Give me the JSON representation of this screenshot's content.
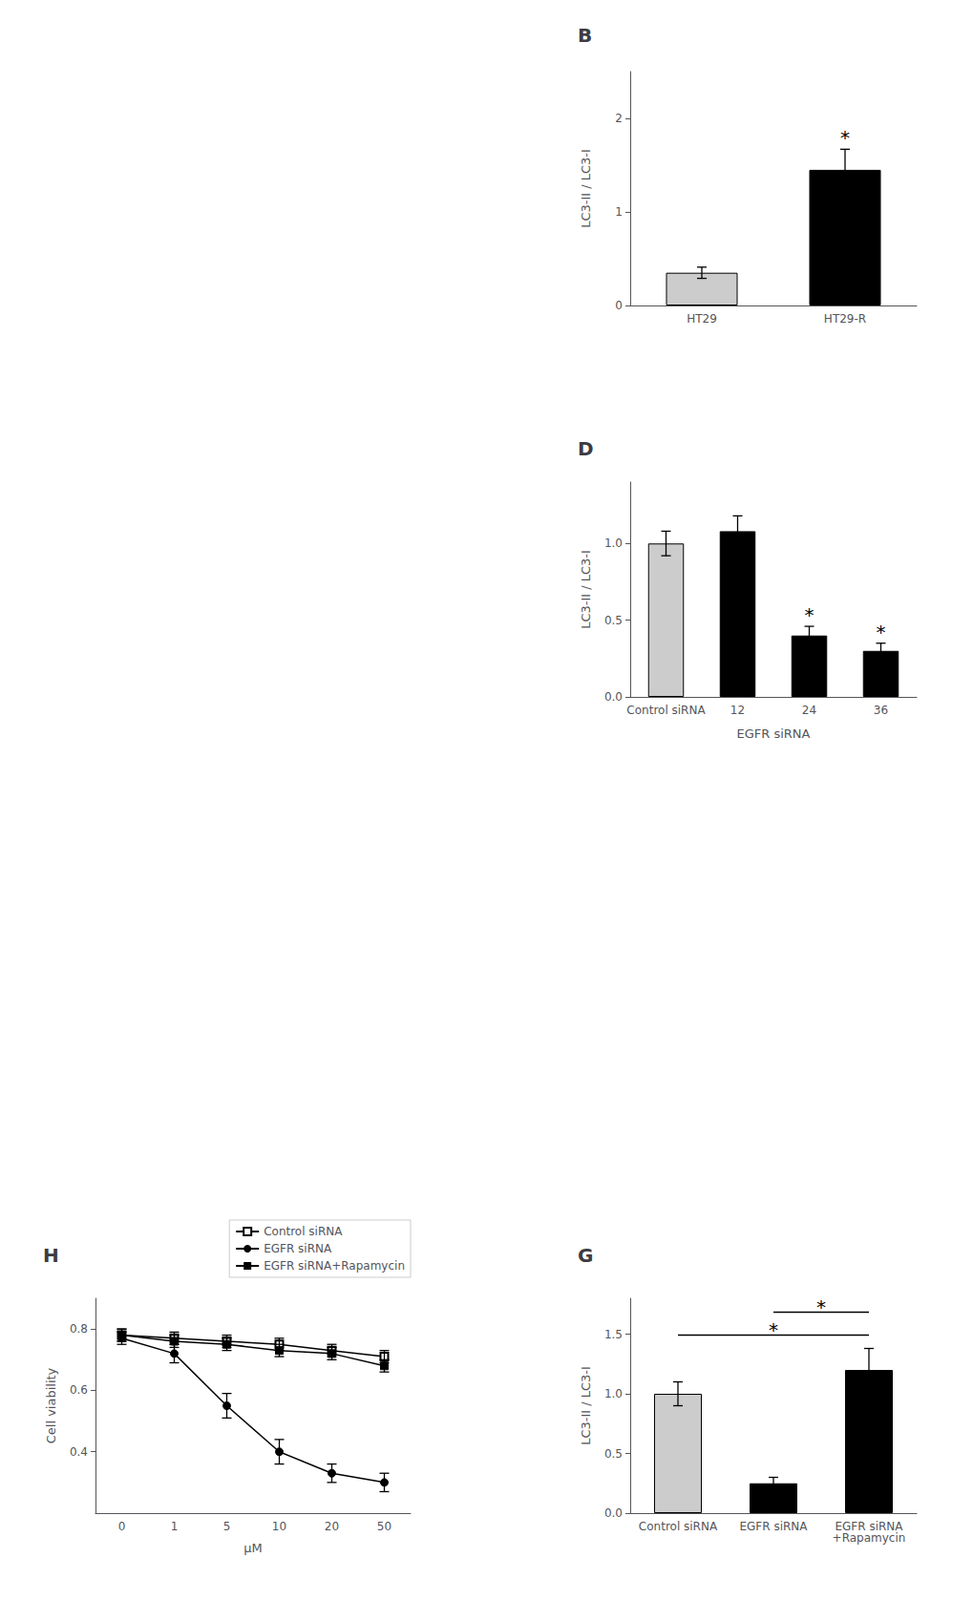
{
  "chart_data": [
    {
      "type": "bar",
      "title": "B",
      "categories": [
        "HT29",
        "HT29-R"
      ],
      "values": [
        0.35,
        1.45
      ],
      "errors": [
        0.06,
        0.22
      ],
      "colors": [
        "#cccccc",
        "#000000"
      ],
      "ylabel": "LC3-II / LC3-I",
      "ylim": [
        0,
        2.5
      ],
      "yticks": [
        0,
        1,
        2
      ],
      "grid": false,
      "annotations": [
        {
          "text": "*",
          "category": "HT29-R"
        }
      ]
    },
    {
      "type": "bar",
      "title": "D",
      "categories": [
        "Control siRNA",
        "12",
        "24",
        "36"
      ],
      "values": [
        1.0,
        1.08,
        0.4,
        0.3
      ],
      "errors": [
        0.08,
        0.1,
        0.06,
        0.05
      ],
      "colors": [
        "#cccccc",
        "#000000",
        "#000000",
        "#000000"
      ],
      "ylabel": "LC3-II / LC3-I",
      "xlabel": "EGFR siRNA",
      "ylim": [
        0,
        1.4
      ],
      "yticks": [
        {
          "value": 0,
          "label": "0.0"
        },
        0.5,
        {
          "value": 1.0,
          "label": "1.0"
        }
      ],
      "grid": false,
      "annotations": [
        {
          "text": "*",
          "category": "24"
        },
        {
          "text": "*",
          "category": "36"
        }
      ]
    },
    {
      "type": "bar",
      "title": "G",
      "categories": [
        "Control siRNA",
        "EGFR siRNA",
        "EGFR siRNA\n+Rapamycin"
      ],
      "values": [
        1.0,
        0.25,
        1.2
      ],
      "errors": [
        0.1,
        0.05,
        0.18
      ],
      "colors": [
        "#cccccc",
        "#000000",
        "#000000"
      ],
      "ylabel": "LC3-II / LC3-I",
      "ylim": [
        0,
        1.8
      ],
      "yticks": [
        {
          "value": 0,
          "label": "0.0"
        },
        0.5,
        {
          "value": 1.0,
          "label": "1.0"
        },
        1.5
      ],
      "grid": false,
      "brackets": [
        {
          "from": "Control siRNA",
          "to": "EGFR siRNA\n+Rapamycin",
          "text": "*"
        },
        {
          "from": "EGFR siRNA",
          "to": "EGFR siRNA\n+Rapamycin",
          "text": "*"
        }
      ]
    },
    {
      "type": "line",
      "title": "H",
      "categories": [
        "0",
        "1",
        "5",
        "10",
        "20",
        "50"
      ],
      "series": [
        {
          "name": "Control siRNA",
          "color": "#000000",
          "marker": "open-square",
          "line_style": "solid",
          "values": [
            0.78,
            0.77,
            0.76,
            0.75,
            0.73,
            0.71
          ],
          "errors": [
            0.02,
            0.02,
            0.02,
            0.02,
            0.02,
            0.02
          ]
        },
        {
          "name": "EGFR siRNA",
          "color": "#000000",
          "marker": "circle",
          "line_style": "solid",
          "values": [
            0.77,
            0.72,
            0.55,
            0.4,
            0.33,
            0.3
          ],
          "errors": [
            0.02,
            0.03,
            0.04,
            0.04,
            0.03,
            0.03
          ]
        },
        {
          "name": "EGFR siRNA+Rapamycin",
          "color": "#000000",
          "marker": "square",
          "line_style": "solid",
          "values": [
            0.78,
            0.76,
            0.75,
            0.73,
            0.72,
            0.68
          ],
          "errors": [
            0.02,
            0.02,
            0.02,
            0.02,
            0.02,
            0.02
          ]
        }
      ],
      "xlabel": "μM",
      "ylabel": "Cell viability",
      "ylim": [
        0.2,
        0.9
      ],
      "yticks": [
        0.4,
        0.6,
        0.8
      ],
      "grid": false,
      "legend": "upper right"
    }
  ]
}
